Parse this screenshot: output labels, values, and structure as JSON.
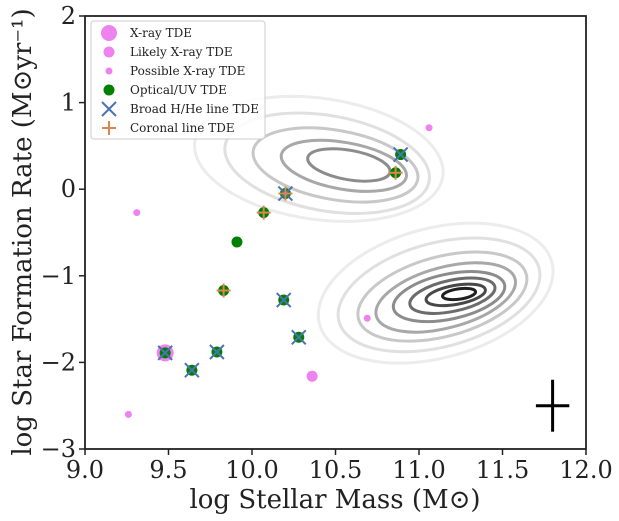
{
  "chart_data": {
    "type": "scatter",
    "xlabel": "log Stellar Mass (M⊙)",
    "ylabel": "log Star Formation Rate (M⊙yr⁻¹)",
    "xlim": [
      9.0,
      12.0
    ],
    "ylim": [
      -3,
      2
    ],
    "xticks": [
      "9.0",
      "9.5",
      "10.0",
      "10.5",
      "11.0",
      "11.5",
      "12.0"
    ],
    "yticks": [
      "−3",
      "−2",
      "−1",
      "0",
      "1",
      "2"
    ],
    "grid": false,
    "legend_position": "top-left",
    "legend": [
      {
        "label": "X-ray TDE",
        "marker": "circle-large",
        "color": "#ee82ee"
      },
      {
        "label": "Likely X-ray TDE",
        "marker": "circle-medium",
        "color": "#ee82ee"
      },
      {
        "label": "Possible X-ray TDE",
        "marker": "circle-small",
        "color": "#ee82ee"
      },
      {
        "label": "Optical/UV TDE",
        "marker": "circle",
        "color": "#008000"
      },
      {
        "label": "Broad H/He line TDE",
        "marker": "x",
        "color": "#4c72b0"
      },
      {
        "label": "Coronal line TDE",
        "marker": "plus",
        "color": "#dd8452"
      }
    ],
    "series": [
      {
        "name": "X-ray TDE",
        "points": [
          [
            9.48,
            -1.89
          ]
        ]
      },
      {
        "name": "Likely X-ray TDE",
        "points": [
          [
            10.36,
            -2.16
          ]
        ]
      },
      {
        "name": "Possible X-ray TDE",
        "points": [
          [
            9.26,
            -2.6
          ],
          [
            9.31,
            -0.27
          ],
          [
            10.69,
            -1.49
          ],
          [
            11.06,
            0.71
          ]
        ]
      },
      {
        "name": "Optical/UV TDE",
        "points": [
          [
            9.48,
            -1.89
          ],
          [
            9.64,
            -2.09
          ],
          [
            9.79,
            -1.88
          ],
          [
            9.83,
            -1.17
          ],
          [
            9.91,
            -0.61
          ],
          [
            10.07,
            -0.27
          ],
          [
            10.19,
            -1.28
          ],
          [
            10.2,
            -0.05
          ],
          [
            10.28,
            -1.71
          ],
          [
            10.86,
            0.19
          ],
          [
            10.89,
            0.4
          ]
        ]
      },
      {
        "name": "Broad H/He line TDE",
        "points": [
          [
            9.48,
            -1.89
          ],
          [
            9.64,
            -2.09
          ],
          [
            9.79,
            -1.88
          ],
          [
            10.19,
            -1.28
          ],
          [
            10.2,
            -0.05
          ],
          [
            10.28,
            -1.71
          ],
          [
            10.89,
            0.4
          ]
        ]
      },
      {
        "name": "Coronal line TDE",
        "points": [
          [
            9.83,
            -1.17
          ],
          [
            10.07,
            -0.27
          ],
          [
            10.2,
            -0.05
          ],
          [
            10.86,
            0.19
          ]
        ]
      }
    ],
    "error_bar_example": {
      "x": 11.8,
      "y": -2.5,
      "xerr": 0.1,
      "yerr": 0.3
    },
    "contours": {
      "description": "galaxy population density",
      "levels": [
        {
          "color": "#ececec",
          "peaks": [
            {
              "cx": 10.4,
              "cy": 0.35,
              "rx": 0.75,
              "ry": 0.7,
              "rot": 8
            },
            {
              "cx": 11.1,
              "cy": -1.2,
              "rx": 0.72,
              "ry": 0.75,
              "rot": -15
            }
          ]
        },
        {
          "color": "#e0e0e0",
          "peaks": [
            {
              "cx": 10.45,
              "cy": 0.3,
              "rx": 0.62,
              "ry": 0.55,
              "rot": 10
            },
            {
              "cx": 11.12,
              "cy": -1.22,
              "rx": 0.62,
              "ry": 0.6,
              "rot": -15
            }
          ]
        },
        {
          "color": "#c8c8c8",
          "peaks": [
            {
              "cx": 10.5,
              "cy": 0.28,
              "rx": 0.5,
              "ry": 0.4,
              "rot": 10
            },
            {
              "cx": 11.14,
              "cy": -1.24,
              "rx": 0.52,
              "ry": 0.46,
              "rot": -15
            }
          ]
        },
        {
          "color": "#a8a8a8",
          "peaks": [
            {
              "cx": 10.55,
              "cy": 0.27,
              "rx": 0.38,
              "ry": 0.27,
              "rot": 10
            },
            {
              "cx": 11.16,
              "cy": -1.25,
              "rx": 0.43,
              "ry": 0.35,
              "rot": -15
            }
          ]
        },
        {
          "color": "#8c8c8c",
          "peaks": [
            {
              "cx": 10.58,
              "cy": 0.28,
              "rx": 0.25,
              "ry": 0.17,
              "rot": 10
            },
            {
              "cx": 11.18,
              "cy": -1.24,
              "rx": 0.34,
              "ry": 0.26,
              "rot": -12
            }
          ]
        },
        {
          "color": "#6c6c6c",
          "peaks": [
            {
              "cx": 11.2,
              "cy": -1.23,
              "rx": 0.26,
              "ry": 0.18,
              "rot": -12
            }
          ]
        },
        {
          "color": "#484848",
          "peaks": [
            {
              "cx": 11.22,
              "cy": -1.22,
              "rx": 0.18,
              "ry": 0.11,
              "rot": -10
            }
          ]
        },
        {
          "color": "#202020",
          "peaks": [
            {
              "cx": 11.24,
              "cy": -1.21,
              "rx": 0.1,
              "ry": 0.06,
              "rot": -8
            }
          ]
        }
      ]
    }
  }
}
